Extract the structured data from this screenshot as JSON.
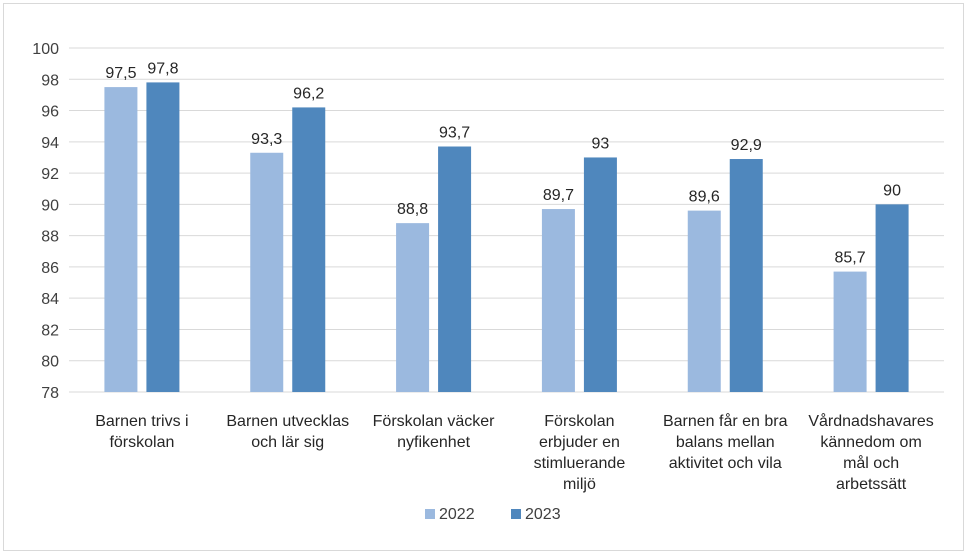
{
  "chart_data": {
    "type": "bar",
    "title": "",
    "xlabel": "",
    "ylabel": "",
    "ylim": [
      78,
      100
    ],
    "ytick_step": 2,
    "categories": [
      [
        "Barnen trivs i",
        "förskolan"
      ],
      [
        "Barnen utvecklas",
        "och lär sig"
      ],
      [
        "Förskolan väcker",
        "nyfikenhet"
      ],
      [
        "Förskolan",
        "erbjuder en",
        "stimluerande",
        "miljö"
      ],
      [
        "Barnen får en bra",
        "balans mellan",
        "aktivitet och vila"
      ],
      [
        "Vårdnadshavares",
        "kännedom om",
        "mål och",
        "arbetssätt"
      ]
    ],
    "series": [
      {
        "name": "2022",
        "color": "#9bb9df",
        "values": [
          97.5,
          93.3,
          88.8,
          89.7,
          89.6,
          85.7
        ],
        "labels": [
          "97,5",
          "93,3",
          "88,8",
          "89,7",
          "89,6",
          "85,7"
        ]
      },
      {
        "name": "2023",
        "color": "#4f87bd",
        "values": [
          97.8,
          96.2,
          93.7,
          93,
          92.9,
          90
        ],
        "labels": [
          "97,8",
          "96,2",
          "93,7",
          "93",
          "92,9",
          "90"
        ]
      }
    ],
    "grid": true,
    "legend_position": "bottom"
  }
}
